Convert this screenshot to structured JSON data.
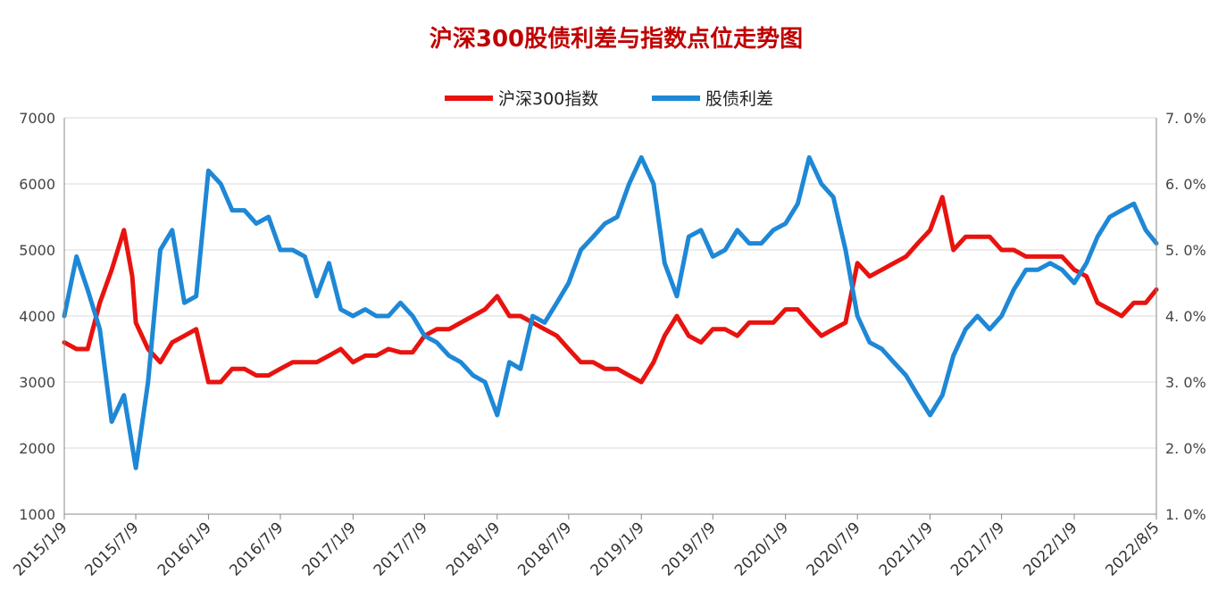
{
  "chart_data": {
    "type": "line",
    "title": "沪深300股债利差与指数点位走势图",
    "title_color": "#c00000",
    "x_labels": [
      "2015/1/9",
      "2015/7/9",
      "2016/1/9",
      "2016/7/9",
      "2017/1/9",
      "2017/7/9",
      "2018/1/9",
      "2018/7/9",
      "2019/1/9",
      "2019/7/9",
      "2020/1/9",
      "2020/7/9",
      "2021/1/9",
      "2021/7/9",
      "2022/1/9",
      "2022/8/5"
    ],
    "y_left": {
      "ylim": [
        1000,
        7000
      ],
      "ticks": [
        "1000",
        "2000",
        "3000",
        "4000",
        "5000",
        "6000",
        "7000"
      ]
    },
    "y_right": {
      "ylim": [
        1.0,
        7.0
      ],
      "ticks": [
        "1. 0%",
        "2. 0%",
        "3. 0%",
        "4. 0%",
        "5. 0%",
        "6. 0%",
        "7. 0%"
      ]
    },
    "grid": true,
    "legend_position": "top-center",
    "series": [
      {
        "name": "沪深300指数",
        "axis": "left",
        "color": "#e8130f",
        "x": [
          "2015/1/9",
          "2015/2/9",
          "2015/3/9",
          "2015/4/9",
          "2015/5/9",
          "2015/6/9",
          "2015/6/30",
          "2015/7/9",
          "2015/8/9",
          "2015/9/9",
          "2015/10/9",
          "2015/11/9",
          "2015/12/9",
          "2016/1/9",
          "2016/2/9",
          "2016/3/9",
          "2016/4/9",
          "2016/5/9",
          "2016/6/9",
          "2016/7/9",
          "2016/8/9",
          "2016/9/9",
          "2016/10/9",
          "2016/11/9",
          "2016/12/9",
          "2017/1/9",
          "2017/2/9",
          "2017/3/9",
          "2017/4/9",
          "2017/5/9",
          "2017/6/9",
          "2017/7/9",
          "2017/8/9",
          "2017/9/9",
          "2017/10/9",
          "2017/11/9",
          "2017/12/9",
          "2018/1/9",
          "2018/2/9",
          "2018/3/9",
          "2018/4/9",
          "2018/5/9",
          "2018/6/9",
          "2018/7/9",
          "2018/8/9",
          "2018/9/9",
          "2018/10/9",
          "2018/11/9",
          "2018/12/9",
          "2019/1/9",
          "2019/2/9",
          "2019/3/9",
          "2019/4/9",
          "2019/5/9",
          "2019/6/9",
          "2019/7/9",
          "2019/8/9",
          "2019/9/9",
          "2019/10/9",
          "2019/11/9",
          "2019/12/9",
          "2020/1/9",
          "2020/2/9",
          "2020/3/9",
          "2020/4/9",
          "2020/5/9",
          "2020/6/9",
          "2020/7/9",
          "2020/8/9",
          "2020/9/9",
          "2020/10/9",
          "2020/11/9",
          "2020/12/9",
          "2021/1/9",
          "2021/2/9",
          "2021/3/9",
          "2021/4/9",
          "2021/5/9",
          "2021/6/9",
          "2021/7/9",
          "2021/8/9",
          "2021/9/9",
          "2021/10/9",
          "2021/11/9",
          "2021/12/9",
          "2022/1/9",
          "2022/2/9",
          "2022/3/9",
          "2022/4/9",
          "2022/5/9",
          "2022/6/9",
          "2022/7/9",
          "2022/8/5"
        ],
        "values": [
          3600,
          3500,
          3500,
          4200,
          4700,
          5300,
          4600,
          3900,
          3500,
          3300,
          3600,
          3700,
          3800,
          3000,
          3000,
          3200,
          3200,
          3100,
          3100,
          3200,
          3300,
          3300,
          3300,
          3400,
          3500,
          3300,
          3400,
          3400,
          3500,
          3450,
          3450,
          3700,
          3800,
          3800,
          3900,
          4000,
          4100,
          4300,
          4000,
          4000,
          3900,
          3800,
          3700,
          3500,
          3300,
          3300,
          3200,
          3200,
          3100,
          3000,
          3300,
          3700,
          4000,
          3700,
          3600,
          3800,
          3800,
          3700,
          3900,
          3900,
          3900,
          4100,
          4100,
          3900,
          3700,
          3800,
          3900,
          4800,
          4600,
          4700,
          4800,
          4900,
          5100,
          5300,
          5800,
          5000,
          5200,
          5200,
          5200,
          5000,
          5000,
          4900,
          4900,
          4900,
          4900,
          4700,
          4600,
          4200,
          4100,
          4000,
          4200,
          4200,
          4400
        ]
      },
      {
        "name": "股债利差",
        "axis": "right",
        "color": "#1e88d6",
        "x": [
          "2015/1/9",
          "2015/2/9",
          "2015/3/9",
          "2015/4/9",
          "2015/5/9",
          "2015/6/9",
          "2015/7/9",
          "2015/8/9",
          "2015/9/9",
          "2015/10/9",
          "2015/11/9",
          "2015/12/9",
          "2016/1/9",
          "2016/2/9",
          "2016/3/9",
          "2016/4/9",
          "2016/5/9",
          "2016/6/9",
          "2016/7/9",
          "2016/8/9",
          "2016/9/9",
          "2016/10/9",
          "2016/11/9",
          "2016/12/9",
          "2017/1/9",
          "2017/2/9",
          "2017/3/9",
          "2017/4/9",
          "2017/5/9",
          "2017/6/9",
          "2017/7/9",
          "2017/8/9",
          "2017/9/9",
          "2017/10/9",
          "2017/11/9",
          "2017/12/9",
          "2018/1/9",
          "2018/2/9",
          "2018/3/9",
          "2018/4/9",
          "2018/5/9",
          "2018/6/9",
          "2018/7/9",
          "2018/8/9",
          "2018/9/9",
          "2018/10/9",
          "2018/11/9",
          "2018/12/9",
          "2019/1/9",
          "2019/2/9",
          "2019/3/9",
          "2019/4/9",
          "2019/5/9",
          "2019/6/9",
          "2019/7/9",
          "2019/8/9",
          "2019/9/9",
          "2019/10/9",
          "2019/11/9",
          "2019/12/9",
          "2020/1/9",
          "2020/2/9",
          "2020/3/9",
          "2020/4/9",
          "2020/5/9",
          "2020/6/9",
          "2020/7/9",
          "2020/8/9",
          "2020/9/9",
          "2020/10/9",
          "2020/11/9",
          "2020/12/9",
          "2021/1/9",
          "2021/2/9",
          "2021/3/9",
          "2021/4/9",
          "2021/5/9",
          "2021/6/9",
          "2021/7/9",
          "2021/8/9",
          "2021/9/9",
          "2021/10/9",
          "2021/11/9",
          "2021/12/9",
          "2022/1/9",
          "2022/2/9",
          "2022/3/9",
          "2022/4/9",
          "2022/5/9",
          "2022/6/9",
          "2022/7/9",
          "2022/8/5"
        ],
        "values": [
          4.0,
          4.9,
          4.4,
          3.8,
          2.4,
          2.8,
          1.7,
          3.0,
          5.0,
          5.3,
          4.2,
          4.3,
          6.2,
          6.0,
          5.6,
          5.6,
          5.4,
          5.5,
          5.0,
          5.0,
          4.9,
          4.3,
          4.8,
          4.1,
          4.0,
          4.1,
          4.0,
          4.0,
          4.2,
          4.0,
          3.7,
          3.6,
          3.4,
          3.3,
          3.1,
          3.0,
          2.5,
          3.3,
          3.2,
          4.0,
          3.9,
          4.2,
          4.5,
          5.0,
          5.2,
          5.4,
          5.5,
          6.0,
          6.4,
          6.0,
          4.8,
          4.3,
          5.2,
          5.3,
          4.9,
          5.0,
          5.3,
          5.1,
          5.1,
          5.3,
          5.4,
          5.7,
          6.4,
          6.0,
          5.8,
          5.0,
          4.0,
          3.6,
          3.5,
          3.3,
          3.1,
          2.8,
          2.5,
          2.8,
          3.4,
          3.8,
          4.0,
          3.8,
          4.0,
          4.4,
          4.7,
          4.7,
          4.8,
          4.7,
          4.5,
          4.8,
          5.2,
          5.5,
          5.6,
          5.7,
          5.3,
          5.1
        ]
      }
    ]
  }
}
